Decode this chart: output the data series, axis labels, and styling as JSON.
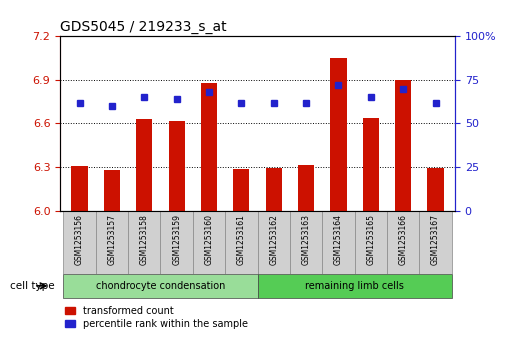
{
  "title": "GDS5045 / 219233_s_at",
  "samples": [
    "GSM1253156",
    "GSM1253157",
    "GSM1253158",
    "GSM1253159",
    "GSM1253160",
    "GSM1253161",
    "GSM1253162",
    "GSM1253163",
    "GSM1253164",
    "GSM1253165",
    "GSM1253166",
    "GSM1253167"
  ],
  "transformed_count": [
    6.31,
    6.28,
    6.63,
    6.62,
    6.88,
    6.285,
    6.295,
    6.315,
    7.05,
    6.635,
    6.9,
    6.295
  ],
  "percentile_rank": [
    62,
    60,
    65,
    64,
    68,
    62,
    62,
    62,
    72,
    65,
    70,
    62
  ],
  "ylim_left": [
    6.0,
    7.2
  ],
  "ylim_right": [
    0,
    100
  ],
  "yticks_left": [
    6.0,
    6.3,
    6.6,
    6.9,
    7.2
  ],
  "yticks_right": [
    0,
    25,
    50,
    75,
    100
  ],
  "bar_color": "#cc1100",
  "dot_color": "#2222cc",
  "baseline": 6.0,
  "cell_type_groups": [
    {
      "label": "chondrocyte condensation",
      "start": 0,
      "end": 6,
      "color": "#99dd99"
    },
    {
      "label": "remaining limb cells",
      "start": 6,
      "end": 12,
      "color": "#55cc55"
    }
  ],
  "legend_bar_label": "transformed count",
  "legend_dot_label": "percentile rank within the sample",
  "cell_type_label": "cell type",
  "grid_ticks": [
    6.3,
    6.6,
    6.9
  ]
}
